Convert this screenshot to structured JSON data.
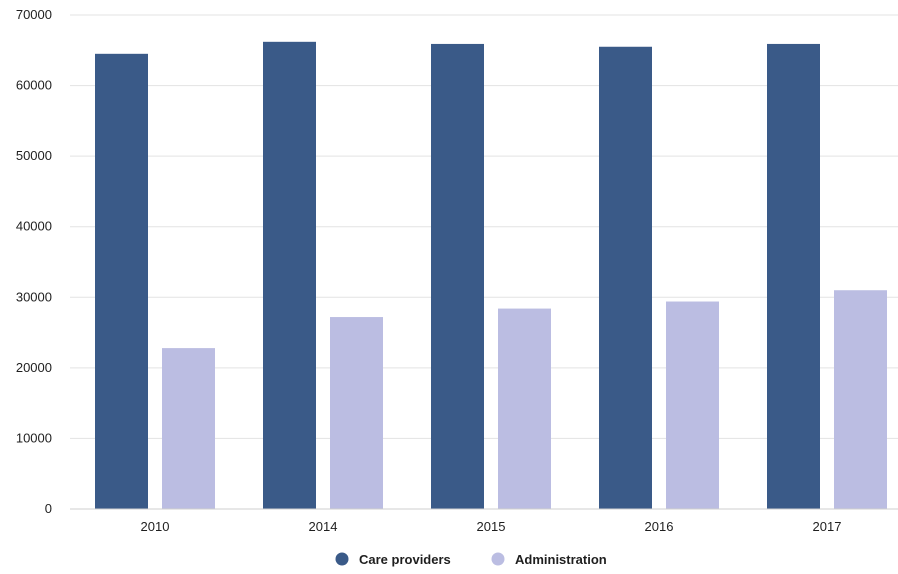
{
  "chart_data": {
    "type": "bar",
    "title": "",
    "xlabel": "",
    "ylabel": "",
    "categories": [
      "2010",
      "2014",
      "2015",
      "2016",
      "2017"
    ],
    "series": [
      {
        "name": "Care providers",
        "color": "#3a5a88",
        "values": [
          64500,
          66200,
          65900,
          65500,
          65900
        ]
      },
      {
        "name": "Administration",
        "color": "#bbbde2",
        "values": [
          22800,
          27200,
          28400,
          29400,
          31000
        ]
      }
    ],
    "ylim": [
      0,
      70000
    ],
    "yticks": [
      "0",
      "10000",
      "20000",
      "30000",
      "40000",
      "50000",
      "60000",
      "70000"
    ],
    "grid": true,
    "legend_position": "bottom-center",
    "legend_marker": "circle"
  }
}
